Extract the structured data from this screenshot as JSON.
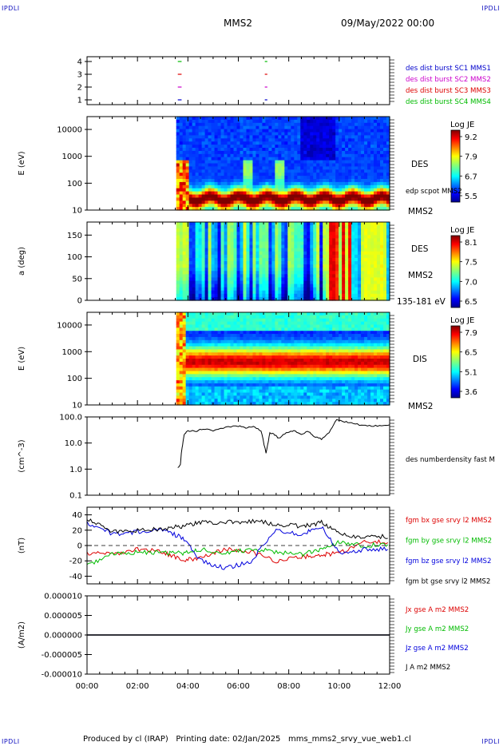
{
  "header": {
    "corner_label": "IPDLI",
    "title": "MMS2",
    "datetime": "09/May/2022 00:00"
  },
  "footer": {
    "produced": "Produced by cl (IRAP)",
    "printing": "Printing date: 02/Jan/2025",
    "file": "mms_mms2_srvy_vue_web1.cl"
  },
  "colors": {
    "mms1": "#0000cc",
    "mms2": "#cc00cc",
    "mms3": "#dd0000",
    "mms4": "#00bb00",
    "bx": "#dd0000",
    "by": "#00bb00",
    "bz": "#0000dd",
    "bt": "#000000"
  },
  "chart_data": [
    {
      "type": "scatter",
      "panel": "availability",
      "yticks": [
        "4",
        "3",
        "2",
        "1"
      ],
      "legend": [
        "des dist burst SC1 MMS1",
        "des dist burst SC2 MMS2",
        "des dist burst SC3 MMS3",
        "des dist burst SC4 MMS4"
      ],
      "intervals_hours": [
        [
          3.6,
          3.75
        ],
        [
          7.05,
          7.15
        ]
      ]
    },
    {
      "type": "heatmap",
      "panel": "des-energy",
      "ylabel": "E (eV)",
      "yscale": "log",
      "ylim": [
        10,
        30000
      ],
      "yticks": [
        "10000",
        "1000",
        "100",
        "10"
      ],
      "right_label": "DES",
      "right_sub": "edp scpot MMS2",
      "right_bottom": "MMS2",
      "colorbar": {
        "title": "Log JE",
        "ticks": [
          "9.2",
          "7.9",
          "6.7",
          "5.5"
        ],
        "range": [
          5.5,
          9.2
        ]
      }
    },
    {
      "type": "heatmap",
      "panel": "des-pitch",
      "ylabel": "a (deg)",
      "ylim": [
        0,
        180
      ],
      "yticks": [
        "150",
        "100",
        "50",
        "0"
      ],
      "right_label": "DES",
      "right_sub": "MMS2",
      "right_bottom": "135-181 eV",
      "colorbar": {
        "title": "Log JE",
        "ticks": [
          "8.1",
          "7.5",
          "7.0",
          "6.5"
        ],
        "range": [
          6.5,
          8.1
        ]
      }
    },
    {
      "type": "heatmap",
      "panel": "dis-energy",
      "ylabel": "E (eV)",
      "yscale": "log",
      "ylim": [
        10,
        30000
      ],
      "yticks": [
        "10000",
        "1000",
        "100",
        "10"
      ],
      "right_label": "DIS",
      "right_bottom": "MMS2",
      "colorbar": {
        "title": "Log JE",
        "ticks": [
          "7.9",
          "6.5",
          "5.1",
          "3.6"
        ],
        "range": [
          3.6,
          7.9
        ]
      }
    },
    {
      "type": "line",
      "panel": "density",
      "ylabel": "(cm^-3)",
      "yscale": "log",
      "ylim": [
        0.1,
        100
      ],
      "yticks": [
        "100.0",
        "10.0",
        "1.0",
        "0.1"
      ],
      "legend": [
        "des numberdensity fast M"
      ],
      "x": [
        3.6,
        3.7,
        3.75,
        3.85,
        4.0,
        4.3,
        4.6,
        5.0,
        5.5,
        6.0,
        6.3,
        6.6,
        6.9,
        7.1,
        7.25,
        7.4,
        7.6,
        7.9,
        8.2,
        8.5,
        8.8,
        9.0,
        9.3,
        9.6,
        9.9,
        10.1,
        10.4,
        10.8,
        11.2,
        11.6,
        12.0
      ],
      "y": [
        1.1,
        1.5,
        5,
        20,
        30,
        28,
        35,
        30,
        40,
        45,
        38,
        42,
        30,
        4,
        25,
        22,
        15,
        25,
        30,
        22,
        28,
        18,
        14,
        25,
        80,
        70,
        60,
        50,
        45,
        45,
        50
      ]
    },
    {
      "type": "line",
      "panel": "magnetic-field",
      "ylabel": "(nT)",
      "ylim": [
        -50,
        50
      ],
      "yticks": [
        "40",
        "20",
        "0",
        "-20",
        "-40"
      ],
      "series": [
        {
          "name": "fgm bx gse srvy l2 MMS2",
          "color": "#dd0000",
          "x": [
            0,
            1,
            2,
            3,
            3.8,
            4.5,
            5.5,
            6.5,
            7.5,
            8.5,
            9.3,
            10,
            11,
            12
          ],
          "y": [
            -10,
            -12,
            -5,
            -8,
            -20,
            -15,
            -5,
            -8,
            -20,
            -15,
            -12,
            -10,
            5,
            5
          ]
        },
        {
          "name": "fgm by gse srvy l2 MMS2",
          "color": "#00bb00",
          "x": [
            0,
            1,
            2,
            3,
            3.8,
            4.5,
            5.5,
            6.5,
            7.5,
            8.5,
            9.3,
            10,
            11,
            12
          ],
          "y": [
            -25,
            -12,
            -8,
            -10,
            -10,
            -5,
            -10,
            -5,
            -8,
            -12,
            -5,
            5,
            0,
            2
          ]
        },
        {
          "name": "fgm bz gse srvy l2 MMS2",
          "color": "#0000dd",
          "x": [
            0,
            1,
            2,
            3,
            3.8,
            4.5,
            5.5,
            6.5,
            7.5,
            8.5,
            9.3,
            10,
            11,
            12
          ],
          "y": [
            30,
            15,
            18,
            20,
            10,
            -20,
            -30,
            -20,
            20,
            15,
            25,
            -10,
            -5,
            -5
          ]
        },
        {
          "name": "fgm bt gse srvy l2 MMS2",
          "color": "#000000",
          "x": [
            0,
            1,
            2,
            3,
            3.8,
            4.5,
            5.5,
            6.5,
            7.5,
            8.5,
            9.3,
            10,
            11,
            12
          ],
          "y": [
            35,
            18,
            20,
            22,
            25,
            30,
            30,
            32,
            28,
            25,
            30,
            15,
            10,
            12
          ]
        }
      ]
    },
    {
      "type": "line",
      "panel": "current-density",
      "ylabel": "(A/m2)",
      "ylim": [
        -0.0001,
        0.0001
      ],
      "yticks": [
        "0.000010",
        "0.000005",
        "0.000000",
        "-0.000005",
        "-0.000010"
      ],
      "series": [
        {
          "name": "Jx gse A m2 MMS2",
          "color": "#dd0000",
          "x": [
            0,
            12
          ],
          "y": [
            0,
            0
          ]
        },
        {
          "name": "Jy gse A m2 MMS2",
          "color": "#00bb00",
          "x": [
            0,
            12
          ],
          "y": [
            0,
            0
          ]
        },
        {
          "name": "Jz gse A m2 MMS2",
          "color": "#0000dd",
          "x": [
            0,
            12
          ],
          "y": [
            0,
            0
          ]
        },
        {
          "name": "J A m2 MMS2",
          "color": "#000000",
          "x": [
            0,
            12
          ],
          "y": [
            0,
            0
          ]
        }
      ]
    }
  ],
  "time_axis": {
    "range_hours": [
      0,
      12
    ],
    "ticks": [
      "00:00",
      "02:00",
      "04:00",
      "06:00",
      "08:00",
      "10:00",
      "12:00"
    ]
  }
}
